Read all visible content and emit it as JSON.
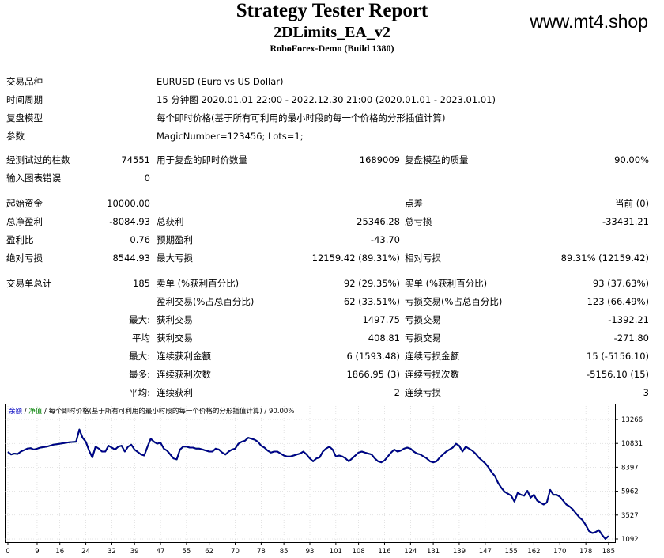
{
  "header": {
    "title": "Strategy Tester Report",
    "subtitle": "2DLimits_EA_v2",
    "build": "RoboForex-Demo (Build 1380)",
    "watermark": "www.mt4.shop"
  },
  "info": {
    "symbol_label": "交易品种",
    "symbol_value": "EURUSD (Euro vs US Dollar)",
    "period_label": "时间周期",
    "period_value": "15 分钟图 2020.01.01 22:00 - 2022.12.30 21:00 (2020.01.01 - 2023.01.01)",
    "model_label": "复盘模型",
    "model_value": "每个即时价格(基于所有可利用的最小时段的每一个价格的分形插值计算)",
    "params_label": "参数",
    "params_value": "MagicNumber=123456; Lots=1;"
  },
  "stats": {
    "bars_label": "经测试过的柱数",
    "bars_value": "74551",
    "ticks_label": "用于复盘的即时价数量",
    "ticks_value": "1689009",
    "quality_label": "复盘模型的质量",
    "quality_value": "90.00%",
    "errors_label": "输入图表错误",
    "errors_value": "0",
    "deposit_label": "起始资金",
    "deposit_value": "10000.00",
    "spread_label": "点差",
    "spread_value": "当前 (0)",
    "net_label": "总净盈利",
    "net_value": "-8084.93",
    "gross_profit_label": "总获利",
    "gross_profit_value": "25346.28",
    "gross_loss_label": "总亏损",
    "gross_loss_value": "-33431.21",
    "pf_label": "盈利比",
    "pf_value": "0.76",
    "expected_label": "预期盈利",
    "expected_value": "-43.70",
    "abs_dd_label": "绝对亏损",
    "abs_dd_value": "8544.93",
    "max_dd_label": "最大亏损",
    "max_dd_value": "12159.42 (89.31%)",
    "rel_dd_label": "相对亏损",
    "rel_dd_value": "89.31% (12159.42)",
    "total_trades_label": "交易单总计",
    "total_trades_value": "185",
    "short_label": "卖单 (%获利百分比)",
    "short_value": "92 (29.35%)",
    "long_label": "买单 (%获利百分比)",
    "long_value": "93 (37.63%)",
    "profit_trades_label": "盈利交易(%占总百分比)",
    "profit_trades_value": "62 (33.51%)",
    "loss_trades_label": "亏损交易(%占总百分比)",
    "loss_trades_value": "123 (66.49%)",
    "largest_prefix": "最大:",
    "largest_profit_label": "获利交易",
    "largest_profit_value": "1497.75",
    "largest_loss_label": "亏损交易",
    "largest_loss_value": "-1392.21",
    "average_prefix": "平均",
    "average_profit_label": "获利交易",
    "average_profit_value": "408.81",
    "average_loss_label": "亏损交易",
    "average_loss_value": "-271.80",
    "max_prefix": "最大:",
    "max_cons_wins_label": "连续获利金额",
    "max_cons_wins_value": "6 (1593.48)",
    "max_cons_losses_label": "连续亏损金额",
    "max_cons_losses_value": "15 (-5156.10)",
    "most_prefix": "最多:",
    "max_cons_profit_label": "连续获利次数",
    "max_cons_profit_value": "1866.95 (3)",
    "max_cons_loss_label": "连续亏损次数",
    "max_cons_loss_value": "-5156.10 (15)",
    "avg_cons_prefix": "平均:",
    "avg_cons_wins_label": "连续获利",
    "avg_cons_wins_value": "2",
    "avg_cons_losses_label": "连续亏损",
    "avg_cons_losses_value": "3"
  },
  "chart_legend": {
    "balance": "余额",
    "sep1": " / ",
    "equity": "净值",
    "sep2": " / ",
    "rest": "每个即时价格(基于所有可利用的最小时段的每一个价格的分形插值计算) / 90.00%"
  },
  "colors": {
    "balance_line": "#00008b",
    "equity_line": "#00a000",
    "legend_balance": "#0000c0",
    "legend_equity": "#008000",
    "grid": "#c8c8c8"
  },
  "chart_data": {
    "type": "line",
    "series": [
      {
        "name": "余额",
        "values": [
          9950,
          9700,
          9800,
          9750,
          10000,
          10150,
          10300,
          10350,
          10200,
          10300,
          10400,
          10450,
          10500,
          10600,
          10700,
          10750,
          10800,
          10850,
          10900,
          10950,
          10980,
          11000,
          12250,
          11400,
          11000,
          10100,
          9400,
          10500,
          10300,
          10000,
          10000,
          10600,
          10400,
          10200,
          10500,
          10600,
          10000,
          10500,
          10700,
          10200,
          9950,
          9700,
          9600,
          10500,
          11300,
          11000,
          10800,
          10900,
          10300,
          10100,
          9700,
          9300,
          9200,
          10200,
          10500,
          10500,
          10400,
          10400,
          10300,
          10300,
          10200,
          10100,
          10000,
          10000,
          10300,
          10200,
          9900,
          9700,
          10000,
          10200,
          10300,
          10800,
          11000,
          11100,
          11400,
          11300,
          11200,
          11000,
          10600,
          10400,
          10100,
          9900,
          10000,
          10000,
          9800,
          9600,
          9500,
          9500,
          9600,
          9700,
          9800,
          10000,
          9700,
          9300,
          9000,
          9300,
          9400,
          10000,
          10300,
          10500,
          10200,
          9500,
          9600,
          9500,
          9300,
          9000,
          9300,
          9600,
          9900,
          10000,
          9900,
          9800,
          9700,
          9300,
          9000,
          8900,
          9100,
          9500,
          9900,
          10200,
          10000,
          10100,
          10300,
          10400,
          10300,
          10000,
          9800,
          9700,
          9500,
          9300,
          9000,
          8900,
          9000,
          9400,
          9700,
          10000,
          10200,
          10400,
          10800,
          10600,
          10000,
          10500,
          10300,
          10100,
          9800,
          9400,
          9100,
          8800,
          8400,
          7900,
          7500,
          6800,
          6300,
          5900,
          5700,
          5500,
          4900,
          5800,
          5600,
          5500,
          6000,
          5300,
          5600,
          5000,
          4800,
          4600,
          4800,
          6100,
          5600,
          5600,
          5400,
          5000,
          4600,
          4400,
          4100,
          3700,
          3300,
          3000,
          2500,
          1900,
          1700,
          1800,
          2000,
          1500,
          1100,
          1400
        ]
      },
      {
        "name": "净值",
        "values": [
          9950,
          9700,
          9800,
          9750,
          10000,
          10150,
          10300,
          10350,
          10200,
          10300,
          10400,
          10450,
          10500,
          10600,
          10700,
          10750,
          10800,
          10850,
          10900,
          10950,
          10980,
          11000,
          12250,
          11400,
          11000,
          10100,
          9400,
          10500,
          10300,
          10000,
          10000,
          10600,
          10400,
          10200,
          10500,
          10600,
          10000,
          10500,
          10700,
          10200,
          9950,
          9700,
          9600,
          10500,
          11300,
          11000,
          10800,
          10900,
          10300,
          10100,
          9700,
          9300,
          9200,
          10200,
          10500,
          10500,
          10400,
          10400,
          10300,
          10300,
          10200,
          10100,
          10000,
          10000,
          10300,
          10200,
          9900,
          9700,
          10000,
          10200,
          10300,
          10800,
          11000,
          11100,
          11400,
          11300,
          11200,
          11000,
          10600,
          10400,
          10100,
          9900,
          10000,
          10000,
          9800,
          9600,
          9500,
          9500,
          9600,
          9700,
          9800,
          10000,
          9700,
          9300,
          9000,
          9300,
          9400,
          10000,
          10300,
          10500,
          10200,
          9500,
          9600,
          9500,
          9300,
          9000,
          9300,
          9600,
          9900,
          10000,
          9900,
          9800,
          9700,
          9300,
          9000,
          8900,
          9100,
          9500,
          9900,
          10200,
          10000,
          10100,
          10300,
          10400,
          10300,
          10000,
          9800,
          9700,
          9500,
          9300,
          9000,
          8900,
          9000,
          9400,
          9700,
          10000,
          10200,
          10400,
          10800,
          10600,
          10000,
          10500,
          10300,
          10100,
          9800,
          9400,
          9100,
          8800,
          8400,
          7900,
          7500,
          6800,
          6300,
          5900,
          5700,
          5500,
          4900,
          5800,
          5600,
          5500,
          6000,
          5300,
          5600,
          5000,
          4800,
          4600,
          4800,
          6100,
          5600,
          5600,
          5400,
          5000,
          4600,
          4400,
          4100,
          3700,
          3300,
          3000,
          2500,
          1900,
          1700,
          1800,
          2000,
          1500,
          1100,
          1400
        ]
      }
    ],
    "x_ticks": [
      "0",
      "9",
      "16",
      "24",
      "32",
      "39",
      "47",
      "55",
      "62",
      "70",
      "78",
      "85",
      "93",
      "101",
      "108",
      "116",
      "124",
      "131",
      "139",
      "147",
      "155",
      "162",
      "170",
      "178",
      "185"
    ],
    "y_ticks": [
      "13266",
      "10831",
      "8397",
      "5962",
      "3527",
      "1092"
    ],
    "ylim": [
      1092,
      13266
    ],
    "xlim": [
      0,
      186
    ],
    "grid": true
  }
}
